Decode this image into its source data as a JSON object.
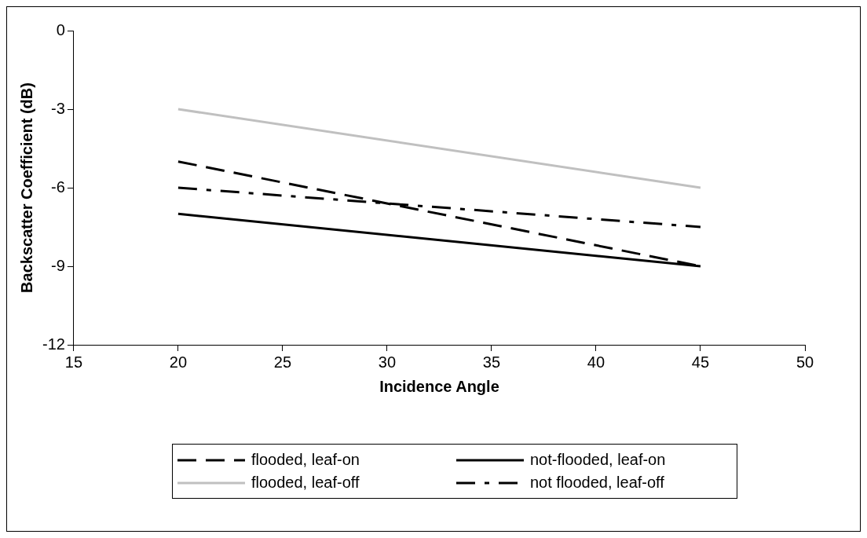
{
  "chart_data": {
    "type": "line",
    "xlabel": "Incidence Angle",
    "ylabel": "Backscatter Coefficient (dB)",
    "xlim": [
      15,
      50
    ],
    "xticks": [
      15,
      20,
      25,
      30,
      35,
      40,
      45,
      50
    ],
    "ylim": [
      -12,
      0
    ],
    "yticks": [
      -12,
      -9,
      -6,
      -3,
      0
    ],
    "grid": false,
    "legend": "bottom",
    "marker": "none",
    "x": [
      20,
      45
    ],
    "series": [
      {
        "name": "flooded, leaf-on",
        "color": "#000000",
        "values": [
          -5,
          -9
        ],
        "line_style": "dashed"
      },
      {
        "name": "not-flooded, leaf-on",
        "color": "#000000",
        "values": [
          -7,
          -9
        ],
        "line_style": "solid"
      },
      {
        "name": "flooded, leaf-off",
        "color": "#c0c0c0",
        "values": [
          -3,
          -6
        ],
        "line_style": "solid"
      },
      {
        "name": "not flooded, leaf-off",
        "color": "#000000",
        "values": [
          -6,
          -7.5
        ],
        "line_style": "dashdot"
      }
    ]
  }
}
